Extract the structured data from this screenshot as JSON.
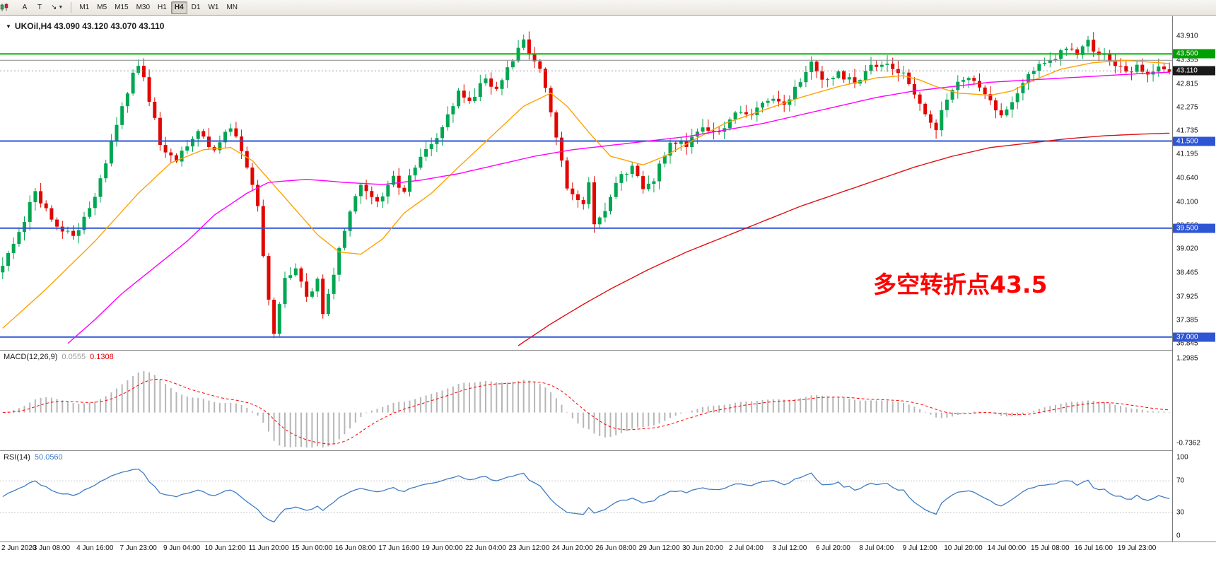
{
  "toolbar": {
    "tool_a": "A",
    "tool_t": "T",
    "timeframes": [
      "M1",
      "M5",
      "M15",
      "M30",
      "H1",
      "H4",
      "D1",
      "W1",
      "MN"
    ],
    "active_timeframe": "H4"
  },
  "chart": {
    "symbol_ohlc": "UKOil,H4  43.090 43.120 43.070 43.110",
    "annotation": "多空转折点43.5",
    "annotation_color": "#ff0000",
    "y_ticks": [
      "43.910",
      "43.355",
      "42.815",
      "42.275",
      "41.735",
      "41.195",
      "40.640",
      "40.100",
      "39.560",
      "39.020",
      "38.465",
      "37.925",
      "37.385",
      "36.845"
    ],
    "price_badges": [
      {
        "price": 43.5,
        "label": "43.500",
        "bg": "#00a000"
      },
      {
        "price": 43.11,
        "label": "43.110",
        "bg": "#1a1a1a"
      },
      {
        "price": 41.5,
        "label": "41.500",
        "bg": "#2e55d4"
      },
      {
        "price": 39.5,
        "label": "39.500",
        "bg": "#2e55d4"
      },
      {
        "price": 37.0,
        "label": "37.000",
        "bg": "#2e55d4"
      }
    ]
  },
  "macd": {
    "label": "MACD(12,26,9)",
    "value_main": "0.0555",
    "value_signal": "0.1308",
    "ticks": [
      {
        "label": "1.2985",
        "v": 1.2985
      },
      {
        "label": "-0.7362",
        "v": -0.7362
      }
    ]
  },
  "rsi": {
    "label": "RSI(14)",
    "value": "50.0560",
    "ticks": [
      {
        "label": "100",
        "v": 100
      },
      {
        "label": "70",
        "v": 70
      },
      {
        "label": "30",
        "v": 30
      },
      {
        "label": "0",
        "v": 0
      }
    ],
    "levels": [
      70,
      30
    ]
  },
  "time_axis": [
    "2 Jun 2020",
    "3 Jun 08:00",
    "4 Jun 16:00",
    "7 Jun 23:00",
    "9 Jun 04:00",
    "10 Jun 12:00",
    "11 Jun 20:00",
    "15 Jun 00:00",
    "16 Jun 08:00",
    "17 Jun 16:00",
    "19 Jun 00:00",
    "22 Jun 04:00",
    "23 Jun 12:00",
    "24 Jun 20:00",
    "26 Jun 08:00",
    "29 Jun 12:00",
    "30 Jun 20:00",
    "2 Jul 04:00",
    "3 Jul 12:00",
    "6 Jul 20:00",
    "8 Jul 04:00",
    "9 Jul 12:00",
    "10 Jul 20:00",
    "14 Jul 00:00",
    "15 Jul 08:00",
    "16 Jul 16:00",
    "19 Jul 23:00"
  ],
  "chart_data": {
    "type": "candlestick",
    "symbol": "UKOil",
    "timeframe": "H4",
    "ohlc_current": {
      "open": 43.09,
      "high": 43.12,
      "low": 43.07,
      "close": 43.11
    },
    "price_axis_range": [
      36.7,
      44.36
    ],
    "macd_axis_range": [
      -0.7362,
      1.2985
    ],
    "rsi_axis_range": [
      0,
      100
    ],
    "bar_count": 216,
    "bars_per_time_label": 8,
    "indicators": [
      {
        "name": "MACD",
        "params": [
          12,
          26,
          9
        ],
        "values": [
          0.0555,
          0.1308
        ]
      },
      {
        "name": "RSI",
        "params": [
          14
        ],
        "values": [
          50.056
        ]
      }
    ],
    "colors": {
      "up": "#00a651",
      "down": "#e10600",
      "ma_fast": "#ffa200",
      "ma_mid": "#ff00ff",
      "ma_slow": "#dd1111",
      "macd_hist": "#b6b6b6",
      "macd_signal": "#ff0000",
      "rsi": "#3f7cc4"
    },
    "hlines": [
      {
        "price": 43.5,
        "color": "#00bb00",
        "width": 2,
        "name": "resistance-line-43-500"
      },
      {
        "price": 43.355,
        "color": "#8a8a8a",
        "width": 1,
        "name": "gray-line-43-355"
      },
      {
        "price": 43.11,
        "color": "#999999",
        "width": 1,
        "dash": "2 3",
        "name": "bid-price-line"
      },
      {
        "price": 41.5,
        "color": "#2e55d4",
        "width": 2,
        "name": "support-line-41-500"
      },
      {
        "price": 39.5,
        "color": "#2e55d4",
        "width": 2,
        "name": "support-line-39-500"
      },
      {
        "price": 37.0,
        "color": "#2e55d4",
        "width": 2,
        "name": "support-line-37-000"
      }
    ],
    "close_waypoints": [
      [
        0,
        38.6
      ],
      [
        3,
        39.4
      ],
      [
        6,
        40.35
      ],
      [
        9,
        39.7
      ],
      [
        13,
        39.3
      ],
      [
        16,
        39.9
      ],
      [
        19,
        41.0
      ],
      [
        22,
        42.3
      ],
      [
        24,
        43.0
      ],
      [
        25,
        43.3
      ],
      [
        26,
        42.9
      ],
      [
        28,
        42.0
      ],
      [
        29,
        41.35
      ],
      [
        32,
        41.1
      ],
      [
        36,
        41.7
      ],
      [
        39,
        41.3
      ],
      [
        42,
        41.85
      ],
      [
        45,
        40.9
      ],
      [
        47,
        39.95
      ],
      [
        49,
        37.8
      ],
      [
        50,
        37.1
      ],
      [
        52,
        38.3
      ],
      [
        54,
        38.55
      ],
      [
        56,
        37.9
      ],
      [
        58,
        38.3
      ],
      [
        59,
        37.45
      ],
      [
        61,
        38.5
      ],
      [
        64,
        39.9
      ],
      [
        66,
        40.45
      ],
      [
        69,
        40.05
      ],
      [
        72,
        40.65
      ],
      [
        74,
        40.35
      ],
      [
        77,
        41.2
      ],
      [
        80,
        41.55
      ],
      [
        82,
        42.05
      ],
      [
        84,
        42.6
      ],
      [
        86,
        42.35
      ],
      [
        89,
        42.95
      ],
      [
        91,
        42.65
      ],
      [
        93,
        43.2
      ],
      [
        95,
        43.6
      ],
      [
        96,
        43.85
      ],
      [
        97,
        43.45
      ],
      [
        99,
        43.1
      ],
      [
        100,
        42.7
      ],
      [
        102,
        41.5
      ],
      [
        104,
        40.45
      ],
      [
        107,
        40.05
      ],
      [
        108,
        40.5
      ],
      [
        109,
        39.6
      ],
      [
        111,
        39.95
      ],
      [
        113,
        40.55
      ],
      [
        116,
        40.95
      ],
      [
        118,
        40.35
      ],
      [
        120,
        40.65
      ],
      [
        123,
        41.5
      ],
      [
        126,
        41.4
      ],
      [
        129,
        41.85
      ],
      [
        132,
        41.65
      ],
      [
        135,
        42.2
      ],
      [
        138,
        42.05
      ],
      [
        141,
        42.5
      ],
      [
        144,
        42.3
      ],
      [
        147,
        42.85
      ],
      [
        149,
        43.25
      ],
      [
        151,
        42.85
      ],
      [
        154,
        43.05
      ],
      [
        157,
        42.85
      ],
      [
        160,
        43.2
      ],
      [
        163,
        43.3
      ],
      [
        166,
        43.0
      ],
      [
        168,
        42.55
      ],
      [
        170,
        42.1
      ],
      [
        172,
        41.8
      ],
      [
        174,
        42.5
      ],
      [
        176,
        42.9
      ],
      [
        179,
        42.95
      ],
      [
        181,
        42.6
      ],
      [
        184,
        42.05
      ],
      [
        186,
        42.35
      ],
      [
        188,
        42.9
      ],
      [
        191,
        43.2
      ],
      [
        194,
        43.45
      ],
      [
        196,
        43.65
      ],
      [
        198,
        43.55
      ],
      [
        200,
        43.75
      ],
      [
        202,
        43.5
      ],
      [
        205,
        43.3
      ],
      [
        207,
        43.05
      ],
      [
        209,
        43.2
      ],
      [
        211,
        43.0
      ],
      [
        213,
        43.15
      ],
      [
        215,
        43.11
      ]
    ],
    "ma_fast_waypoints": [
      [
        0,
        37.2
      ],
      [
        8,
        38.1
      ],
      [
        17,
        39.2
      ],
      [
        25,
        40.3
      ],
      [
        31,
        41.0
      ],
      [
        37,
        41.3
      ],
      [
        42,
        41.35
      ],
      [
        46,
        41.05
      ],
      [
        52,
        40.2
      ],
      [
        58,
        39.35
      ],
      [
        62,
        38.95
      ],
      [
        66,
        38.9
      ],
      [
        70,
        39.25
      ],
      [
        74,
        39.85
      ],
      [
        79,
        40.3
      ],
      [
        84,
        40.9
      ],
      [
        90,
        41.6
      ],
      [
        96,
        42.3
      ],
      [
        101,
        42.6
      ],
      [
        104,
        42.3
      ],
      [
        108,
        41.7
      ],
      [
        112,
        41.15
      ],
      [
        118,
        40.95
      ],
      [
        122,
        41.15
      ],
      [
        127,
        41.5
      ],
      [
        133,
        41.9
      ],
      [
        140,
        42.2
      ],
      [
        147,
        42.5
      ],
      [
        154,
        42.75
      ],
      [
        161,
        42.95
      ],
      [
        166,
        43.0
      ],
      [
        169,
        42.9
      ],
      [
        172,
        42.75
      ],
      [
        176,
        42.6
      ],
      [
        182,
        42.55
      ],
      [
        186,
        42.65
      ],
      [
        190,
        42.9
      ],
      [
        195,
        43.15
      ],
      [
        201,
        43.3
      ],
      [
        207,
        43.35
      ],
      [
        215,
        43.28
      ]
    ],
    "ma_mid_waypoints": [
      [
        12,
        36.85
      ],
      [
        17,
        37.4
      ],
      [
        22,
        38.0
      ],
      [
        28,
        38.6
      ],
      [
        34,
        39.2
      ],
      [
        39,
        39.8
      ],
      [
        45,
        40.3
      ],
      [
        49,
        40.55
      ],
      [
        56,
        40.62
      ],
      [
        63,
        40.55
      ],
      [
        70,
        40.5
      ],
      [
        77,
        40.6
      ],
      [
        84,
        40.75
      ],
      [
        91,
        40.95
      ],
      [
        98,
        41.15
      ],
      [
        105,
        41.3
      ],
      [
        112,
        41.4
      ],
      [
        119,
        41.5
      ],
      [
        126,
        41.6
      ],
      [
        133,
        41.75
      ],
      [
        140,
        41.9
      ],
      [
        147,
        42.1
      ],
      [
        154,
        42.3
      ],
      [
        161,
        42.5
      ],
      [
        168,
        42.65
      ],
      [
        175,
        42.75
      ],
      [
        182,
        42.85
      ],
      [
        189,
        42.9
      ],
      [
        196,
        42.95
      ],
      [
        203,
        43.0
      ],
      [
        210,
        43.05
      ],
      [
        215,
        43.08
      ]
    ],
    "ma_slow_waypoints": [
      [
        95,
        36.8
      ],
      [
        101,
        37.3
      ],
      [
        107,
        37.75
      ],
      [
        112,
        38.1
      ],
      [
        119,
        38.55
      ],
      [
        126,
        38.95
      ],
      [
        133,
        39.3
      ],
      [
        140,
        39.65
      ],
      [
        147,
        40.0
      ],
      [
        154,
        40.3
      ],
      [
        161,
        40.6
      ],
      [
        168,
        40.9
      ],
      [
        175,
        41.15
      ],
      [
        182,
        41.35
      ],
      [
        189,
        41.45
      ],
      [
        196,
        41.55
      ],
      [
        203,
        41.62
      ],
      [
        210,
        41.66
      ],
      [
        215,
        41.68
      ]
    ]
  }
}
